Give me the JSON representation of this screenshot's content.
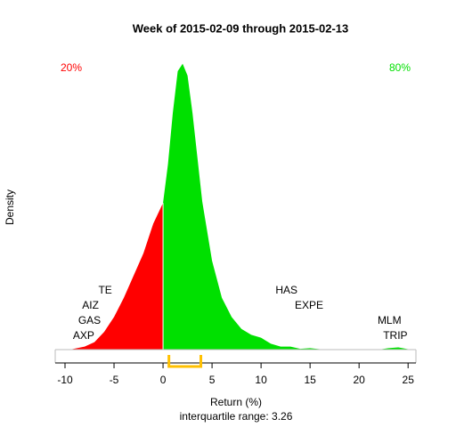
{
  "chart_data": {
    "type": "density",
    "title": "Week of 2015-02-09 through 2015-02-13",
    "xlabel": "Return (%)",
    "ylabel": "Density",
    "subtitle": "interquartile range: 3.26",
    "x": [
      -9.5,
      -8,
      -7,
      -6,
      -5,
      -4,
      -3,
      -2,
      -1,
      0,
      0.5,
      1,
      1.5,
      2,
      2.5,
      3,
      3.5,
      4,
      5,
      6,
      7,
      8,
      9,
      10,
      11,
      12,
      13,
      14,
      15,
      16,
      18,
      22,
      23,
      24,
      25
    ],
    "values": [
      0,
      0.002,
      0.005,
      0.012,
      0.022,
      0.035,
      0.05,
      0.065,
      0.085,
      0.099,
      0.125,
      0.16,
      0.188,
      0.193,
      0.185,
      0.16,
      0.13,
      0.1,
      0.06,
      0.035,
      0.022,
      0.014,
      0.01,
      0.008,
      0.004,
      0.002,
      0.002,
      0.0005,
      0.001,
      0.0003,
      0,
      0,
      0.001,
      0.0015,
      0.0003
    ],
    "split": 0,
    "negative_color": "#ff0000",
    "positive_color": "#00e000",
    "negative_share": "20%",
    "positive_share": "80%",
    "iqr": [
      0.6,
      3.86
    ],
    "iqr_color": "#ffc000",
    "tickers": [
      {
        "text": "TE",
        "x": -5.9
      },
      {
        "text": "AIZ",
        "x": -7.4
      },
      {
        "text": "GAS",
        "x": -7.5
      },
      {
        "text": "AXP",
        "x": -8.1
      },
      {
        "text": "HAS",
        "x": 12.6
      },
      {
        "text": "EXPE",
        "x": 14.9
      },
      {
        "text": "MLM",
        "x": 23.1
      },
      {
        "text": "TRIP",
        "x": 23.7
      }
    ],
    "xlim": [
      -11,
      25.8
    ],
    "ylim": [
      0,
      0.2
    ],
    "xticks": [
      -10,
      -5,
      0,
      5,
      10,
      15,
      20,
      25
    ]
  }
}
